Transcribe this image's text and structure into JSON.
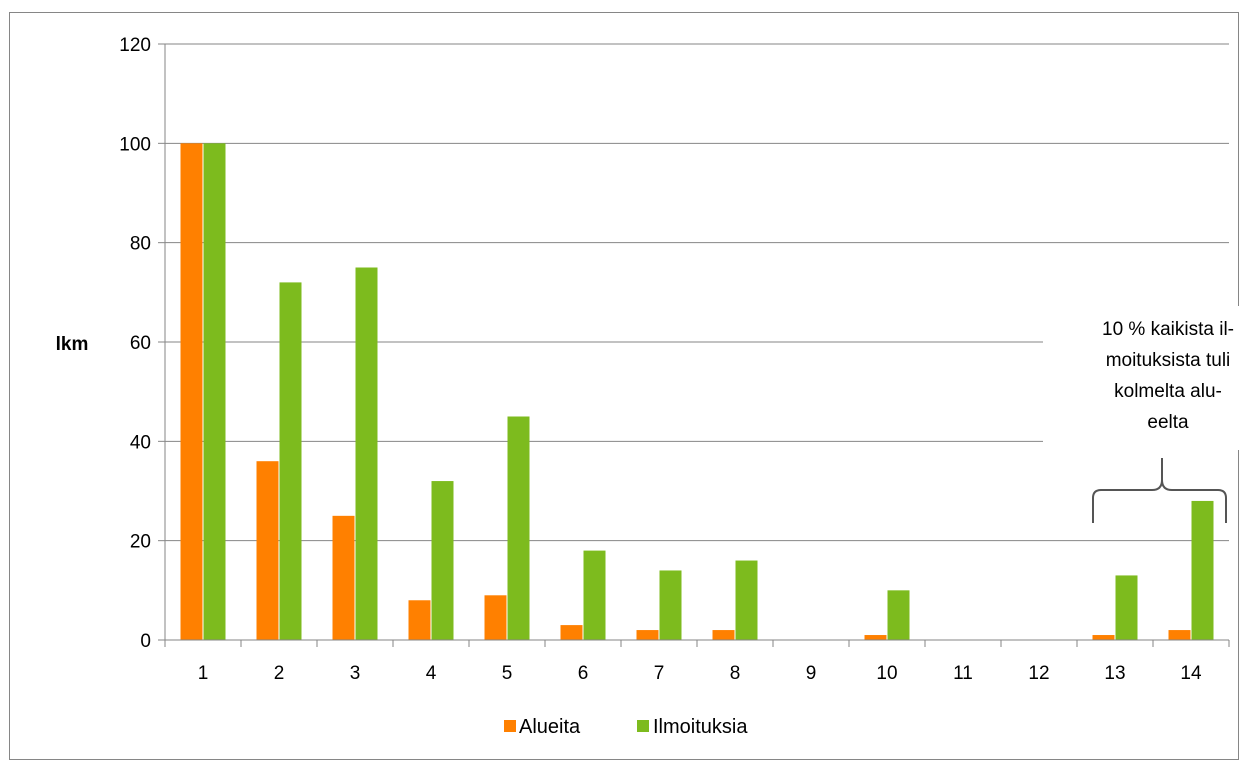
{
  "chart_data": {
    "type": "bar",
    "title": "",
    "xlabel": "",
    "ylabel": "lkm",
    "categories": [
      "1",
      "2",
      "3",
      "4",
      "5",
      "6",
      "7",
      "8",
      "9",
      "10",
      "11",
      "12",
      "13",
      "14"
    ],
    "series": [
      {
        "name": "Alueita",
        "color": "#FF8000",
        "values": [
          100,
          36,
          25,
          8,
          9,
          3,
          2,
          2,
          0,
          1,
          0,
          0,
          1,
          2
        ]
      },
      {
        "name": "Ilmoituksia",
        "color": "#7DBB1E",
        "values": [
          100,
          72,
          75,
          32,
          45,
          18,
          14,
          16,
          0,
          10,
          0,
          0,
          13,
          28
        ]
      }
    ],
    "ylim": [
      0,
      120
    ],
    "yticks": [
      "0",
      "20",
      "40",
      "60",
      "80",
      "100",
      "120"
    ],
    "grid": true,
    "legend": "bottom",
    "annotation": {
      "lines": [
        "10 % kaikista il-",
        "moituksista tuli",
        "kolmelta alu-",
        "eelta"
      ],
      "bracket_categories": [
        "13",
        "14"
      ]
    }
  }
}
